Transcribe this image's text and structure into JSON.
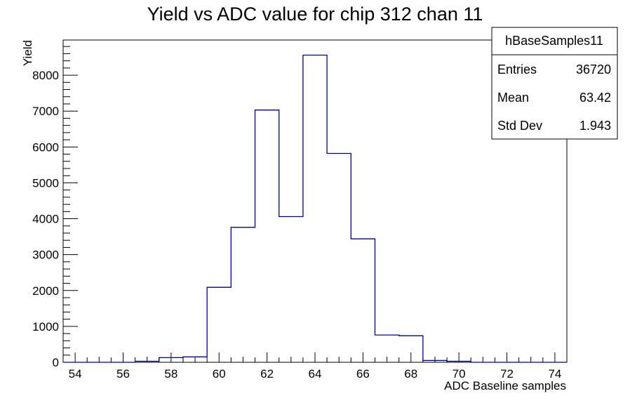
{
  "chart_data": {
    "type": "bar",
    "title": "Yield vs ADC value for chip 312 chan 11",
    "xlabel": "ADC Baseline samples",
    "ylabel": "Yield",
    "xlim": [
      53.5,
      74.5
    ],
    "ylim": [
      0,
      8980
    ],
    "xticks": [
      54,
      56,
      58,
      60,
      62,
      64,
      66,
      68,
      70,
      72,
      74
    ],
    "yticks": [
      0,
      1000,
      2000,
      3000,
      4000,
      5000,
      6000,
      7000,
      8000
    ],
    "bin_edges": [
      53.5,
      54.5,
      55.5,
      56.5,
      57.5,
      58.5,
      59.5,
      60.5,
      61.5,
      62.5,
      63.5,
      64.5,
      65.5,
      66.5,
      67.5,
      68.5,
      69.5,
      70.5,
      71.5,
      72.5,
      73.5,
      74.5
    ],
    "values": [
      0,
      0,
      0,
      30,
      130,
      150,
      2090,
      3760,
      7030,
      4060,
      8560,
      5820,
      3440,
      760,
      740,
      50,
      30,
      0,
      0,
      0,
      0
    ],
    "line_color": "#000099",
    "grid": false,
    "stats_box": {
      "name": "hBaseSamples11",
      "rows": [
        {
          "label": "Entries",
          "value": "36720"
        },
        {
          "label": "Mean",
          "value": "63.42"
        },
        {
          "label": "Std Dev",
          "value": "1.943"
        }
      ],
      "placement": "top-right"
    }
  }
}
